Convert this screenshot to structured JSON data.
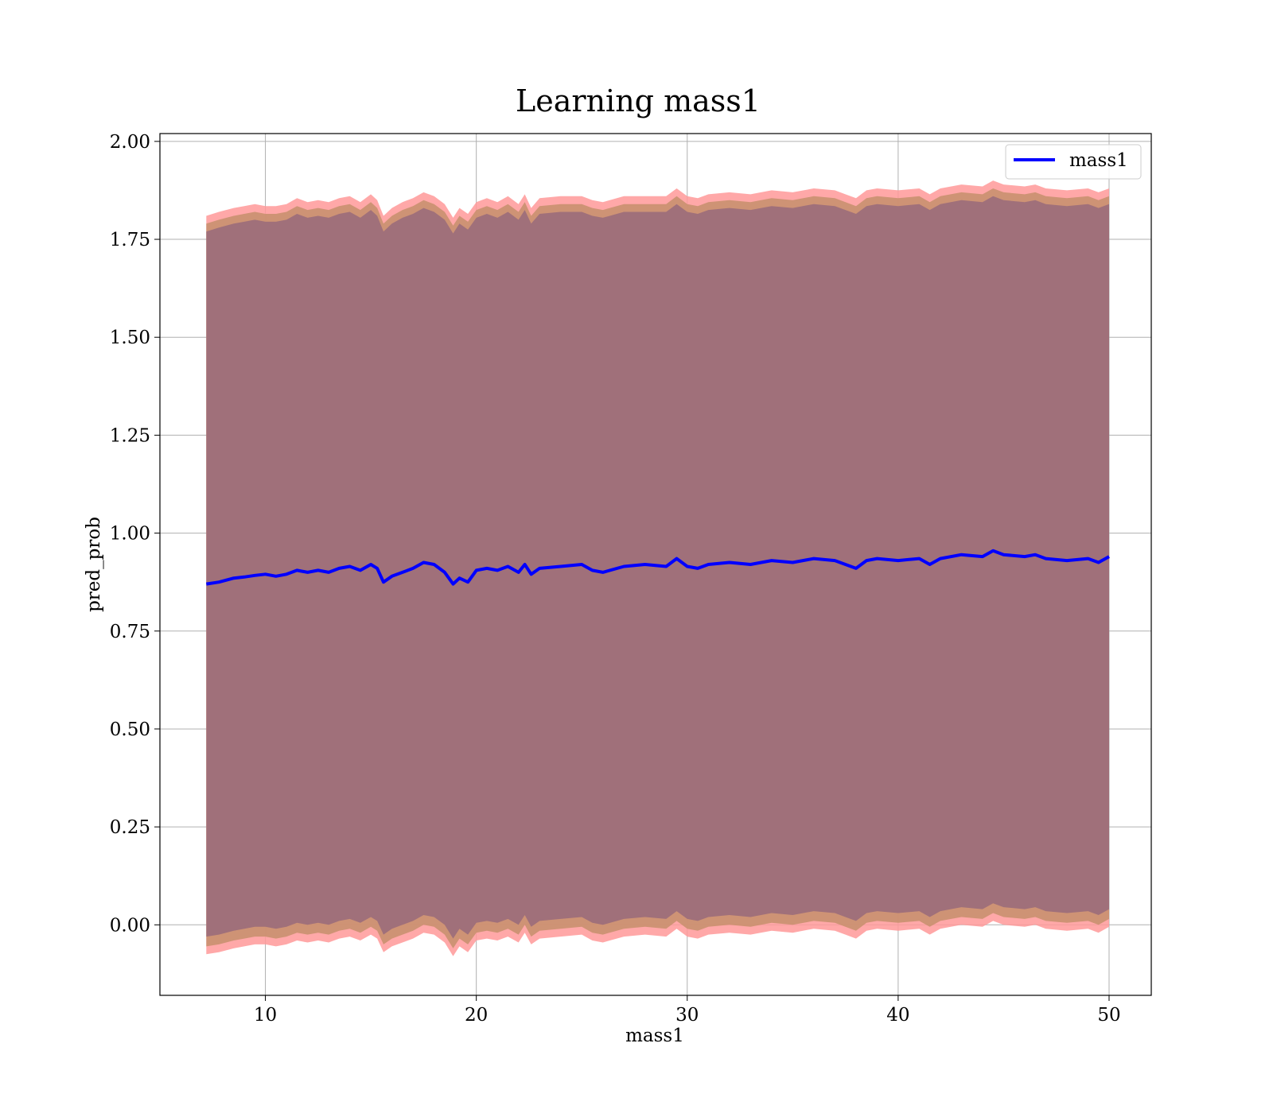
{
  "chart_data": {
    "type": "line",
    "title": "Learning mass1",
    "xlabel": "mass1",
    "ylabel": "pred_prob",
    "xlim": [
      5,
      52
    ],
    "ylim": [
      -0.18,
      2.02
    ],
    "x_ticks": [
      10,
      20,
      30,
      40,
      50
    ],
    "y_ticks": [
      0.0,
      0.25,
      0.5,
      0.75,
      1.0,
      1.25,
      1.5,
      1.75,
      2.0
    ],
    "x_tick_labels": [
      "10",
      "20",
      "30",
      "40",
      "50"
    ],
    "y_tick_labels": [
      "0.00",
      "0.25",
      "0.50",
      "0.75",
      "1.00",
      "1.25",
      "1.50",
      "1.75",
      "2.00"
    ],
    "grid": true,
    "legend": {
      "position": "top-right",
      "entries": [
        "mass1"
      ]
    },
    "colors": {
      "line": "#0000ff",
      "band_outer": "#ff9999",
      "band_middle": "#c9906f",
      "band_inner": "#a0707a",
      "grid": "#b0b0b0"
    },
    "series": [
      {
        "name": "mass1",
        "x": [
          7.2,
          7.8,
          8.5,
          9.0,
          9.5,
          10.0,
          10.5,
          11.0,
          11.5,
          12.0,
          12.5,
          13.0,
          13.5,
          14.0,
          14.5,
          15.0,
          15.3,
          15.6,
          16.0,
          16.5,
          17.0,
          17.5,
          18.0,
          18.5,
          18.9,
          19.2,
          19.6,
          20.0,
          20.5,
          21.0,
          21.5,
          22.0,
          22.3,
          22.6,
          23.0,
          24.0,
          25.0,
          25.5,
          26.0,
          27.0,
          28.0,
          29.0,
          29.5,
          30.0,
          30.5,
          31.0,
          32.0,
          33.0,
          34.0,
          35.0,
          36.0,
          37.0,
          37.5,
          38.0,
          38.5,
          39.0,
          40.0,
          41.0,
          41.5,
          42.0,
          43.0,
          44.0,
          44.5,
          45.0,
          46.0,
          46.5,
          47.0,
          48.0,
          49.0,
          49.5,
          50.0
        ],
        "y": [
          0.87,
          0.875,
          0.885,
          0.888,
          0.892,
          0.895,
          0.89,
          0.895,
          0.905,
          0.9,
          0.905,
          0.9,
          0.91,
          0.915,
          0.905,
          0.92,
          0.91,
          0.875,
          0.89,
          0.9,
          0.91,
          0.925,
          0.92,
          0.9,
          0.87,
          0.885,
          0.875,
          0.905,
          0.91,
          0.905,
          0.915,
          0.9,
          0.92,
          0.895,
          0.91,
          0.915,
          0.92,
          0.905,
          0.9,
          0.915,
          0.92,
          0.915,
          0.935,
          0.915,
          0.91,
          0.92,
          0.925,
          0.92,
          0.93,
          0.925,
          0.935,
          0.93,
          0.92,
          0.91,
          0.93,
          0.935,
          0.93,
          0.935,
          0.92,
          0.935,
          0.945,
          0.94,
          0.955,
          0.945,
          0.94,
          0.945,
          0.935,
          0.93,
          0.935,
          0.925,
          0.94
        ],
        "band_outer_upper": [
          1.81,
          1.82,
          1.83,
          1.835,
          1.84,
          1.835,
          1.835,
          1.84,
          1.855,
          1.845,
          1.85,
          1.845,
          1.855,
          1.86,
          1.845,
          1.865,
          1.85,
          1.81,
          1.83,
          1.845,
          1.855,
          1.87,
          1.86,
          1.84,
          1.805,
          1.83,
          1.815,
          1.845,
          1.855,
          1.845,
          1.86,
          1.84,
          1.865,
          1.83,
          1.855,
          1.86,
          1.86,
          1.85,
          1.845,
          1.86,
          1.86,
          1.86,
          1.88,
          1.86,
          1.855,
          1.865,
          1.87,
          1.865,
          1.875,
          1.87,
          1.88,
          1.875,
          1.865,
          1.855,
          1.875,
          1.88,
          1.875,
          1.88,
          1.865,
          1.88,
          1.89,
          1.885,
          1.9,
          1.89,
          1.885,
          1.89,
          1.88,
          1.875,
          1.88,
          1.87,
          1.88
        ],
        "band_outer_lower": [
          -0.075,
          -0.07,
          -0.06,
          -0.055,
          -0.05,
          -0.05,
          -0.055,
          -0.05,
          -0.04,
          -0.045,
          -0.04,
          -0.045,
          -0.035,
          -0.03,
          -0.04,
          -0.025,
          -0.035,
          -0.07,
          -0.055,
          -0.045,
          -0.035,
          -0.02,
          -0.025,
          -0.045,
          -0.08,
          -0.055,
          -0.07,
          -0.04,
          -0.035,
          -0.04,
          -0.03,
          -0.045,
          -0.02,
          -0.05,
          -0.035,
          -0.03,
          -0.025,
          -0.04,
          -0.045,
          -0.03,
          -0.025,
          -0.03,
          -0.01,
          -0.03,
          -0.035,
          -0.025,
          -0.02,
          -0.025,
          -0.015,
          -0.02,
          -0.01,
          -0.015,
          -0.025,
          -0.035,
          -0.015,
          -0.01,
          -0.015,
          -0.01,
          -0.025,
          -0.01,
          0.0,
          -0.005,
          0.01,
          0.0,
          -0.005,
          0.0,
          -0.01,
          -0.015,
          -0.01,
          -0.02,
          -0.005
        ],
        "band_mid_upper": [
          1.79,
          1.8,
          1.81,
          1.815,
          1.82,
          1.815,
          1.815,
          1.82,
          1.835,
          1.825,
          1.83,
          1.825,
          1.835,
          1.84,
          1.825,
          1.845,
          1.83,
          1.79,
          1.81,
          1.825,
          1.835,
          1.85,
          1.84,
          1.82,
          1.785,
          1.81,
          1.795,
          1.825,
          1.835,
          1.825,
          1.84,
          1.82,
          1.845,
          1.81,
          1.835,
          1.84,
          1.84,
          1.83,
          1.825,
          1.84,
          1.84,
          1.84,
          1.86,
          1.84,
          1.835,
          1.845,
          1.85,
          1.845,
          1.855,
          1.85,
          1.86,
          1.855,
          1.845,
          1.835,
          1.855,
          1.86,
          1.855,
          1.86,
          1.845,
          1.86,
          1.87,
          1.865,
          1.88,
          1.87,
          1.865,
          1.87,
          1.86,
          1.855,
          1.86,
          1.85,
          1.86
        ],
        "band_mid_lower": [
          -0.055,
          -0.05,
          -0.04,
          -0.035,
          -0.03,
          -0.03,
          -0.035,
          -0.03,
          -0.02,
          -0.025,
          -0.02,
          -0.025,
          -0.015,
          -0.01,
          -0.02,
          -0.005,
          -0.015,
          -0.05,
          -0.035,
          -0.025,
          -0.015,
          0.0,
          -0.005,
          -0.025,
          -0.06,
          -0.035,
          -0.05,
          -0.02,
          -0.015,
          -0.02,
          -0.01,
          -0.025,
          0.0,
          -0.03,
          -0.015,
          -0.01,
          -0.005,
          -0.02,
          -0.025,
          -0.01,
          -0.005,
          -0.01,
          0.01,
          -0.01,
          -0.015,
          -0.005,
          0.0,
          -0.005,
          0.005,
          0.0,
          0.01,
          0.005,
          -0.005,
          -0.015,
          0.005,
          0.01,
          0.005,
          0.01,
          -0.005,
          0.01,
          0.02,
          0.015,
          0.03,
          0.02,
          0.015,
          0.02,
          0.01,
          0.005,
          0.01,
          0.0,
          0.015
        ],
        "band_inner_upper": [
          1.77,
          1.78,
          1.79,
          1.795,
          1.8,
          1.795,
          1.795,
          1.8,
          1.815,
          1.805,
          1.81,
          1.805,
          1.815,
          1.82,
          1.805,
          1.825,
          1.81,
          1.77,
          1.79,
          1.805,
          1.815,
          1.83,
          1.82,
          1.8,
          1.765,
          1.79,
          1.775,
          1.805,
          1.815,
          1.805,
          1.82,
          1.8,
          1.825,
          1.79,
          1.815,
          1.82,
          1.82,
          1.81,
          1.805,
          1.82,
          1.82,
          1.82,
          1.84,
          1.82,
          1.815,
          1.825,
          1.83,
          1.825,
          1.835,
          1.83,
          1.84,
          1.835,
          1.825,
          1.815,
          1.835,
          1.84,
          1.835,
          1.84,
          1.825,
          1.84,
          1.85,
          1.845,
          1.86,
          1.85,
          1.845,
          1.85,
          1.84,
          1.835,
          1.84,
          1.83,
          1.84
        ],
        "band_inner_lower": [
          -0.03,
          -0.025,
          -0.015,
          -0.01,
          -0.005,
          -0.005,
          -0.01,
          -0.005,
          0.005,
          0.0,
          0.005,
          0.0,
          0.01,
          0.015,
          0.005,
          0.02,
          0.01,
          -0.025,
          -0.01,
          0.0,
          0.01,
          0.025,
          0.02,
          0.0,
          -0.035,
          -0.01,
          -0.025,
          0.005,
          0.01,
          0.005,
          0.015,
          0.0,
          0.025,
          -0.005,
          0.01,
          0.015,
          0.02,
          0.005,
          0.0,
          0.015,
          0.02,
          0.015,
          0.035,
          0.015,
          0.01,
          0.02,
          0.025,
          0.02,
          0.03,
          0.025,
          0.035,
          0.03,
          0.02,
          0.01,
          0.03,
          0.035,
          0.03,
          0.035,
          0.02,
          0.035,
          0.045,
          0.04,
          0.055,
          0.045,
          0.04,
          0.045,
          0.035,
          0.03,
          0.035,
          0.025,
          0.04
        ]
      }
    ]
  }
}
